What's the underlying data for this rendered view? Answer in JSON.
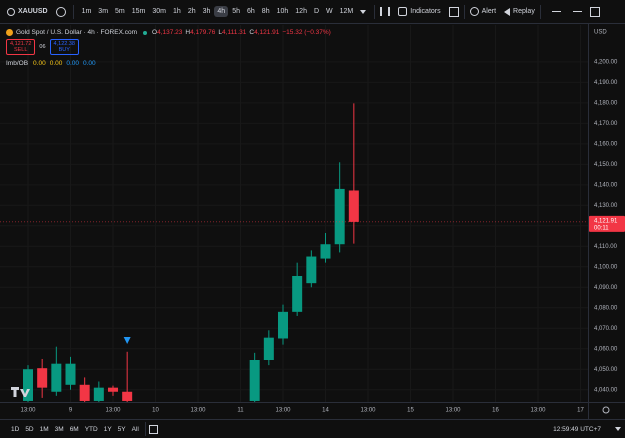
{
  "toolbar": {
    "symbol": "XAUUSD",
    "intervals": [
      "1m",
      "3m",
      "5m",
      "15m",
      "30m",
      "1h",
      "2h",
      "3h",
      "4h",
      "5h",
      "6h",
      "8h",
      "10h",
      "12h",
      "D",
      "W",
      "12M"
    ],
    "active_interval": "4h",
    "indicators": "Indicators",
    "alert": "Alert",
    "replay": "Replay"
  },
  "legend": {
    "title": "Gold Spot / U.S. Dollar · 4h · FOREX.com",
    "ohlc": [
      {
        "key": "O",
        "value": "4,137.23"
      },
      {
        "key": "H",
        "value": "4,179.76"
      },
      {
        "key": "L",
        "value": "4,111.31"
      },
      {
        "key": "C",
        "value": "4,121.91"
      }
    ],
    "change": "−15.32 (−0.37%)",
    "sell_price": "4,121.72",
    "sell": "SELL",
    "spread": "06",
    "buy_price": "4,122.38",
    "buy": "BUY",
    "indicator": "Imb/OB",
    "indicator_values": [
      "0.00",
      "0.00",
      "0.00",
      "0.00"
    ]
  },
  "currency": "USD",
  "countdown": "00:11",
  "bottom_bar": {
    "ranges": [
      "1D",
      "5D",
      "1M",
      "3M",
      "6M",
      "YTD",
      "1Y",
      "5Y",
      "All"
    ],
    "clock": "12:59:49 UTC+7"
  },
  "chart_data": {
    "type": "candlestick",
    "categories": [
      "13:00",
      null,
      null,
      "9",
      null,
      null,
      "13:00",
      null,
      null,
      "10",
      null,
      null,
      "13:00",
      null,
      null,
      "11",
      null,
      null,
      "13:00",
      null,
      null,
      "14",
      null,
      null,
      "13:00",
      null,
      null,
      "15",
      null,
      null,
      "13:00",
      null,
      null,
      "16",
      null,
      null,
      "13:00",
      null,
      null,
      "17"
    ],
    "open": [
      4034.5,
      4050.5,
      4039,
      4042.4,
      4042.4,
      4034.5,
      4041,
      4039,
      null,
      null,
      null,
      null,
      null,
      null,
      null,
      null,
      4034.5,
      4054.5,
      4065,
      4078,
      4092,
      4104,
      4111,
      4137.23,
      null,
      null,
      null,
      null,
      null,
      null,
      null,
      null,
      null,
      null,
      null,
      null,
      null,
      null,
      null,
      null
    ],
    "high": [
      4052,
      4055,
      4061,
      4056,
      4046,
      4044,
      4042,
      4058.5,
      null,
      null,
      null,
      null,
      null,
      null,
      null,
      null,
      4058,
      4069,
      4081.5,
      4102,
      4108,
      4116.5,
      4151,
      4179.76,
      null,
      null,
      null,
      null,
      null,
      null,
      null,
      null,
      null,
      null,
      null,
      null,
      null,
      null,
      null,
      null
    ],
    "low": [
      4034,
      4036,
      4037,
      4040,
      4034,
      4034,
      4037,
      4034,
      null,
      null,
      null,
      null,
      null,
      null,
      null,
      null,
      4034,
      4052,
      4062,
      4076,
      4090,
      4102,
      4107,
      4111.31,
      null,
      null,
      null,
      null,
      null,
      null,
      null,
      null,
      null,
      null,
      null,
      null,
      null,
      null,
      null,
      null
    ],
    "close": [
      4050,
      4041,
      4052.7,
      4052.7,
      4034.5,
      4041,
      4039,
      4034.5,
      null,
      null,
      null,
      null,
      null,
      null,
      null,
      null,
      4054.5,
      4065.4,
      4078,
      4095.5,
      4105,
      4111,
      4138,
      4121.91,
      null,
      null,
      null,
      null,
      null,
      null,
      null,
      null,
      null,
      null,
      null,
      null,
      null,
      null,
      null,
      null
    ],
    "up_color": "#089981",
    "down_color": "#f23645",
    "ylim": [
      4034,
      4218
    ],
    "yticks": [
      {
        "value": 4040,
        "label": "4,040.00"
      },
      {
        "value": 4050,
        "label": "4,050.00"
      },
      {
        "value": 4060,
        "label": "4,060.00"
      },
      {
        "value": 4070,
        "label": "4,070.00"
      },
      {
        "value": 4080,
        "label": "4,080.00"
      },
      {
        "value": 4090,
        "label": "4,090.00"
      },
      {
        "value": 4100,
        "label": "4,100.00"
      },
      {
        "value": 4110,
        "label": "4,110.00"
      },
      {
        "value": 4120,
        "label": "4,120.00"
      },
      {
        "value": 4130,
        "label": "4,130.00"
      },
      {
        "value": 4140,
        "label": "4,140.00"
      },
      {
        "value": 4150,
        "label": "4,150.00"
      },
      {
        "value": 4160,
        "label": "4,160.00"
      },
      {
        "value": 4170,
        "label": "4,170.00"
      },
      {
        "value": 4180,
        "label": "4,180.00"
      },
      {
        "value": 4190,
        "label": "4,190.00"
      },
      {
        "value": 4200,
        "label": "4,200.00"
      }
    ],
    "last_price": {
      "value": 4121.91,
      "label": "4,121.91"
    },
    "grid": true
  }
}
